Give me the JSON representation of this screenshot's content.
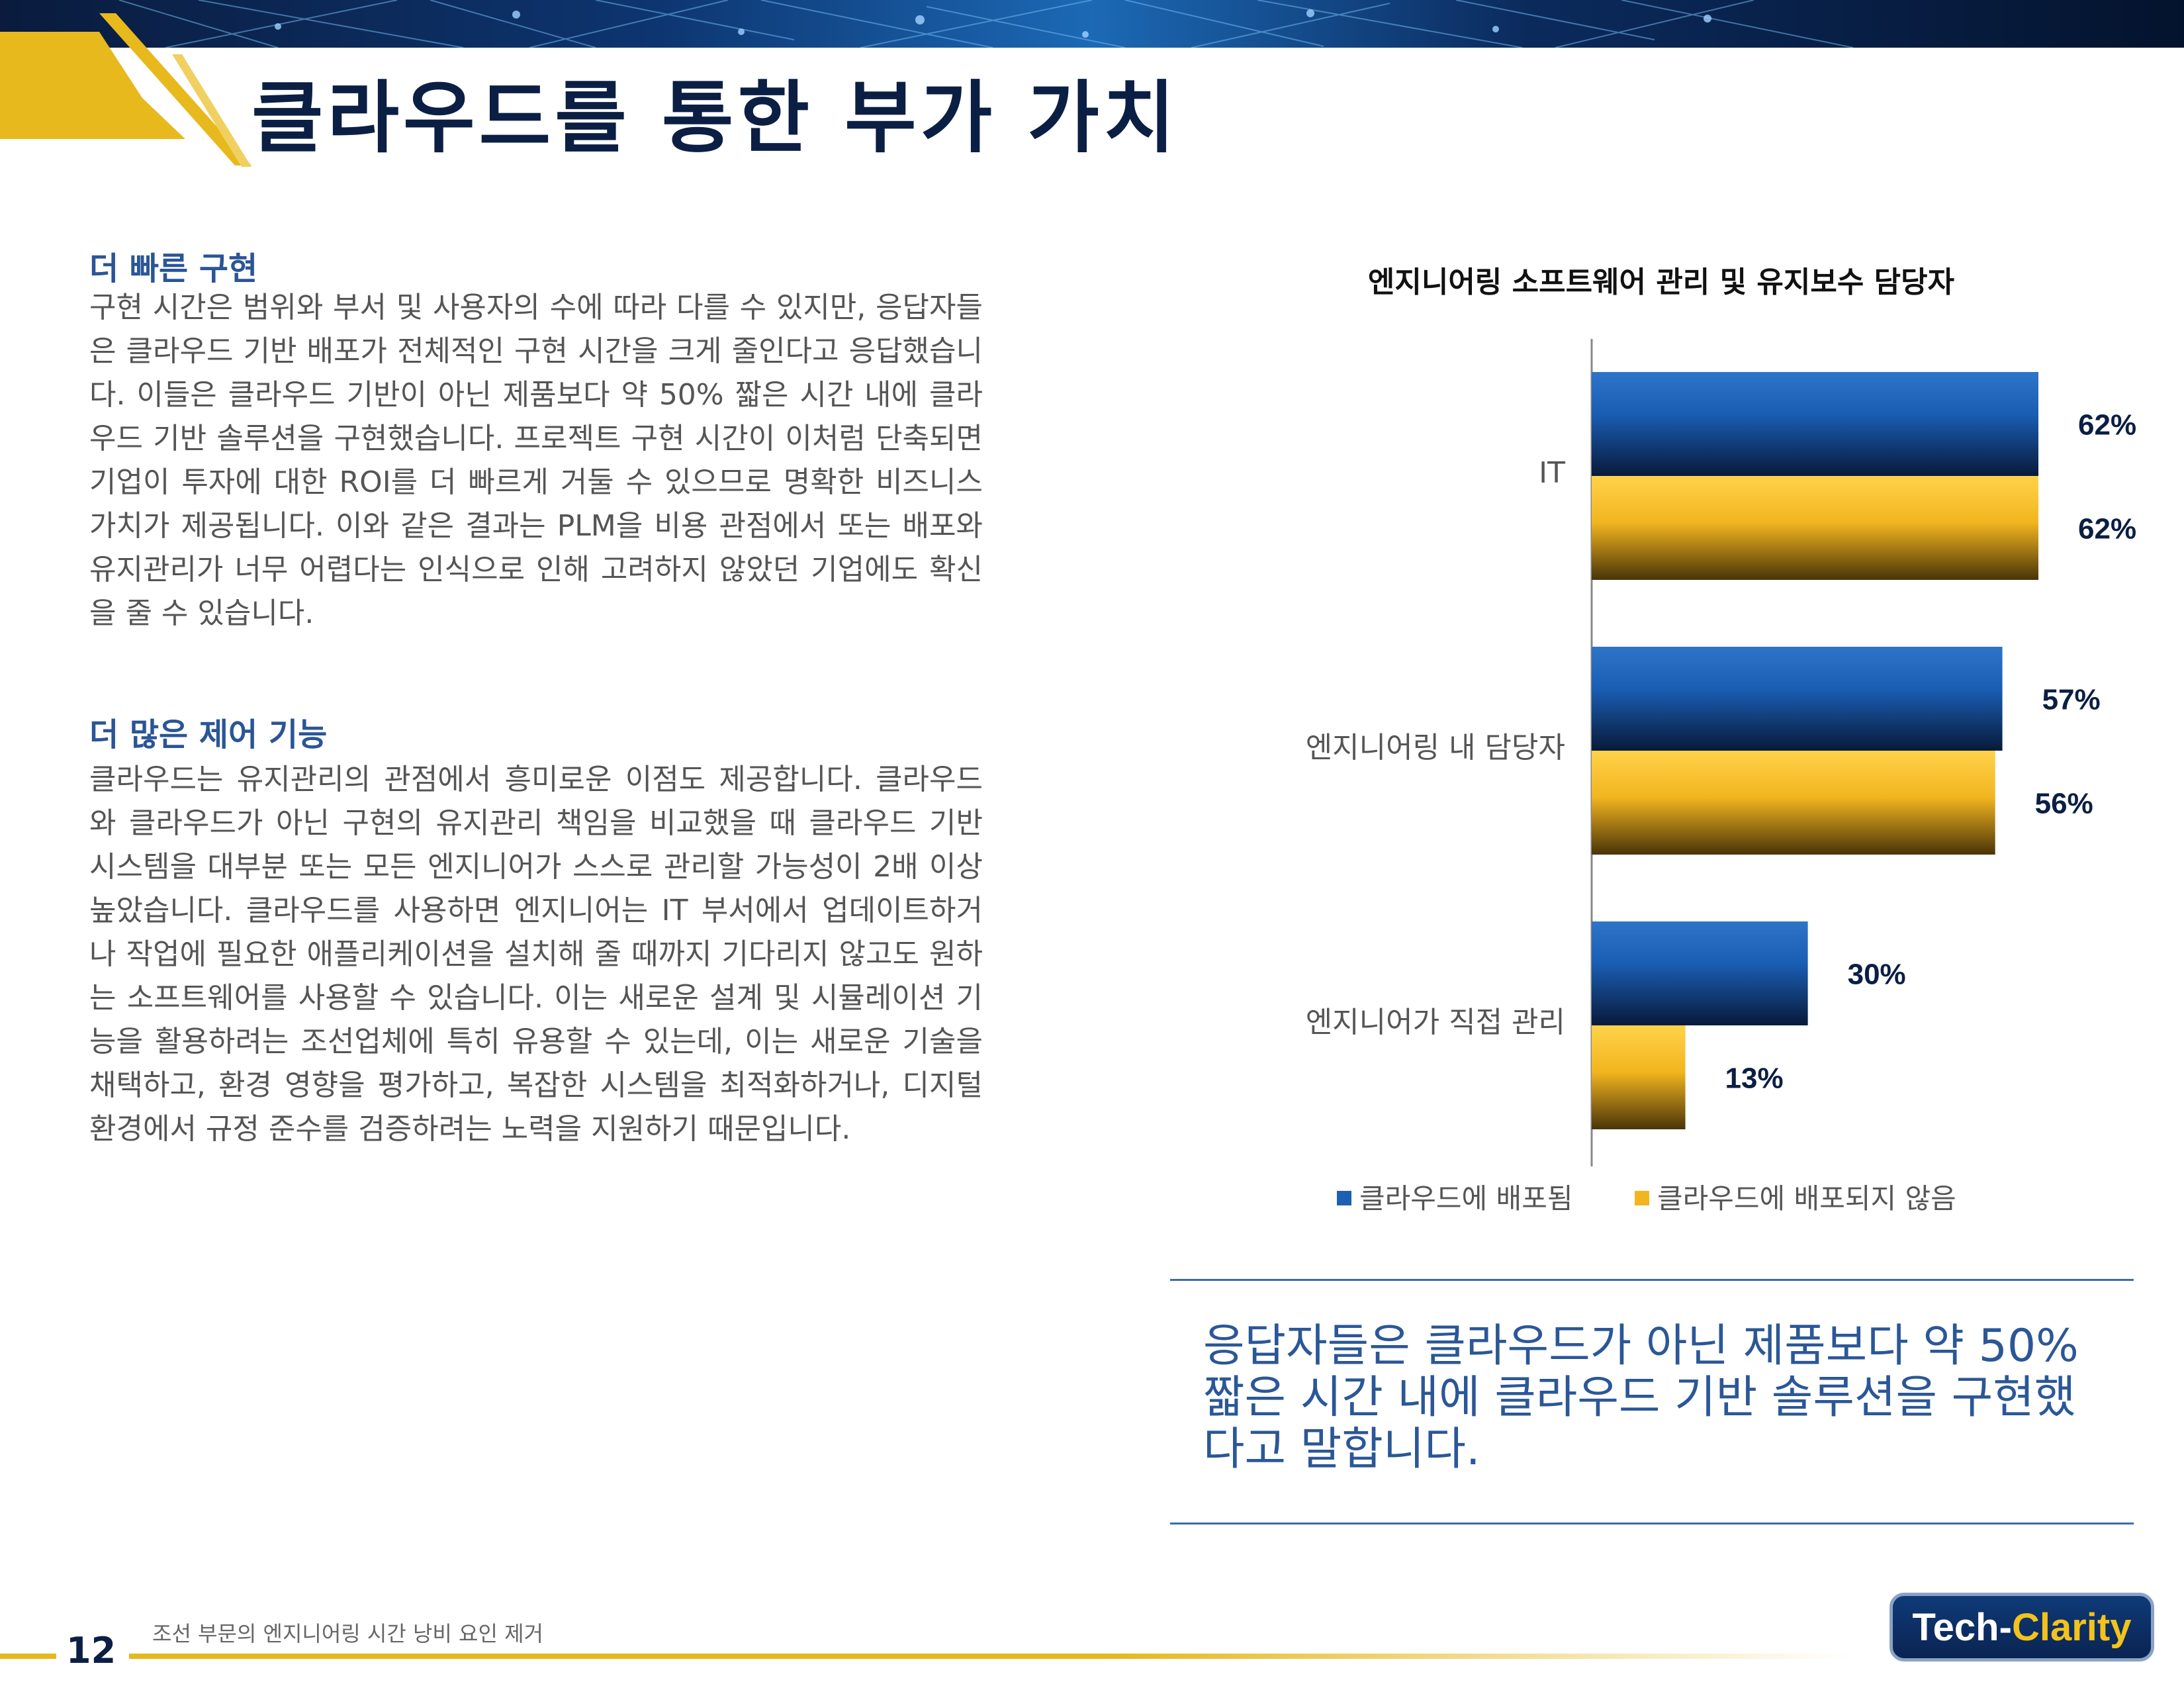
{
  "header": {
    "title": "클라우드를 통한 부가 가치"
  },
  "left": {
    "sections": [
      {
        "heading": "더 빠른 구현",
        "body": "구현 시간은 범위와 부서 및 사용자의 수에 따라 다를 수 있지만, 응답자들은 클라우드 기반 배포가 전체적인 구현 시간을 크게 줄인다고 응답했습니다. 이들은 클라우드 기반이 아닌 제품보다 약 50% 짧은 시간 내에 클라우드 기반 솔루션을 구현했습니다. 프로젝트 구현 시간이 이처럼 단축되면 기업이 투자에 대한 ROI를 더 빠르게 거둘 수 있으므로 명확한 비즈니스 가치가 제공됩니다. 이와 같은 결과는 PLM을 비용 관점에서 또는 배포와 유지관리가 너무 어렵다는 인식으로 인해 고려하지 않았던 기업에도 확신을 줄 수 있습니다."
      },
      {
        "heading": "더 많은 제어 기능",
        "body": "클라우드는 유지관리의 관점에서 흥미로운 이점도 제공합니다. 클라우드와 클라우드가 아닌 구현의 유지관리 책임을 비교했을 때 클라우드 기반 시스템을 대부분 또는 모든 엔지니어가 스스로 관리할 가능성이 2배 이상 높았습니다. 클라우드를 사용하면 엔지니어는 IT 부서에서 업데이트하거나 작업에 필요한 애플리케이션을 설치해 줄 때까지 기다리지 않고도 원하는 소프트웨어를 사용할 수 있습니다. 이는 새로운 설계 및 시뮬레이션 기능을 활용하려는 조선업체에 특히 유용할 수 있는데, 이는 새로운 기술을 채택하고, 환경 영향을 평가하고, 복잡한 시스템을 최적화하거나, 디지털 환경에서 규정 준수를 검증하려는 노력을 지원하기 때문입니다."
      }
    ]
  },
  "chart_data": {
    "type": "bar",
    "orientation": "horizontal",
    "title": "엔지니어링 소프트웨어 관리 및 유지보수 담당자",
    "categories": [
      "IT",
      "엔지니어링 내 담당자",
      "엔지니어가 직접 관리"
    ],
    "series": [
      {
        "name": "클라우드에 배포됨",
        "values": [
          62,
          57,
          30
        ],
        "labels": [
          "62%",
          "57%",
          "30%"
        ],
        "color": "#1d5fb4"
      },
      {
        "name": "클라우드에 배포되지 않음",
        "values": [
          62,
          56,
          13
        ],
        "labels": [
          "62%",
          "56%",
          "13%"
        ],
        "color": "#f2b51f"
      }
    ],
    "unit": "%",
    "xlim": [
      0,
      62
    ],
    "grid": false,
    "legend": "bottom"
  },
  "callout": {
    "text": "응답자들은 클라우드가 아닌 제품보다 약 50% 짧은 시간 내에 클라우드 기반 솔루션을 구현했다고 말합니다."
  },
  "footer": {
    "page_number": "12",
    "document_title": "조선 부문의 엔지니어링 시간 낭비 요인 제거",
    "logo_part1": "Tech-",
    "logo_part2": "Clarity"
  },
  "colors": {
    "title": "#0b1f44",
    "accent_gold": "#e5b81c",
    "heading_blue": "#2a5597"
  }
}
